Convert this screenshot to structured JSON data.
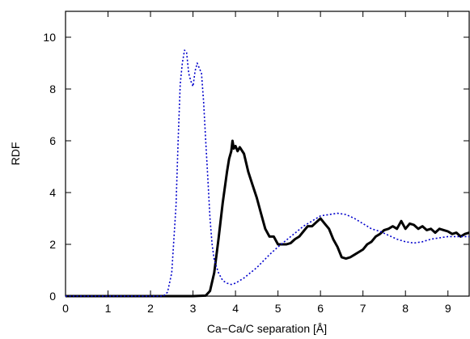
{
  "chart_data": {
    "type": "line",
    "xlabel": "Ca−Ca/C separation [Å]",
    "ylabel": "RDF",
    "xlim": [
      0,
      9.5
    ],
    "ylim": [
      0,
      11
    ],
    "xticks": [
      "0",
      "1",
      "2",
      "3",
      "4",
      "5",
      "6",
      "7",
      "8",
      "9"
    ],
    "yticks": [
      "0",
      "2",
      "4",
      "6",
      "8",
      "10"
    ],
    "grid": false,
    "legend": "none",
    "series": [
      {
        "style": "solid",
        "color": "#000000",
        "x": [
          0,
          2.0,
          3.0,
          3.3,
          3.4,
          3.5,
          3.6,
          3.7,
          3.8,
          3.85,
          3.9,
          3.93,
          3.96,
          4.0,
          4.05,
          4.1,
          4.2,
          4.3,
          4.4,
          4.5,
          4.6,
          4.7,
          4.8,
          4.9,
          5.0,
          5.1,
          5.2,
          5.3,
          5.4,
          5.5,
          5.6,
          5.7,
          5.8,
          5.9,
          6.0,
          6.1,
          6.2,
          6.3,
          6.4,
          6.5,
          6.6,
          6.7,
          6.8,
          6.9,
          7.0,
          7.1,
          7.2,
          7.3,
          7.4,
          7.5,
          7.6,
          7.7,
          7.8,
          7.9,
          8.0,
          8.1,
          8.2,
          8.3,
          8.4,
          8.5,
          8.6,
          8.7,
          8.8,
          8.9,
          9.0,
          9.1,
          9.2,
          9.3,
          9.4,
          9.5
        ],
        "y": [
          0,
          0,
          0,
          0.02,
          0.2,
          0.9,
          2.2,
          3.6,
          4.8,
          5.3,
          5.6,
          6.0,
          5.7,
          5.8,
          5.6,
          5.75,
          5.5,
          4.8,
          4.3,
          3.8,
          3.2,
          2.6,
          2.3,
          2.3,
          2.0,
          2.0,
          2.0,
          2.05,
          2.2,
          2.3,
          2.5,
          2.7,
          2.7,
          2.85,
          3.0,
          2.8,
          2.6,
          2.2,
          1.9,
          1.5,
          1.45,
          1.5,
          1.6,
          1.7,
          1.8,
          2.0,
          2.1,
          2.3,
          2.4,
          2.55,
          2.6,
          2.7,
          2.6,
          2.9,
          2.6,
          2.8,
          2.75,
          2.6,
          2.7,
          2.55,
          2.6,
          2.45,
          2.6,
          2.55,
          2.5,
          2.4,
          2.45,
          2.3,
          2.4,
          2.45
        ]
      },
      {
        "style": "dotted",
        "color": "#0000cc",
        "x": [
          0,
          2.3,
          2.4,
          2.5,
          2.6,
          2.65,
          2.7,
          2.75,
          2.8,
          2.85,
          2.9,
          2.95,
          3.0,
          3.05,
          3.1,
          3.15,
          3.2,
          3.25,
          3.3,
          3.35,
          3.4,
          3.45,
          3.5,
          3.6,
          3.7,
          3.8,
          3.9,
          4.0,
          4.2,
          4.5,
          4.8,
          5.0,
          5.3,
          5.6,
          5.8,
          6.0,
          6.2,
          6.4,
          6.6,
          6.8,
          7.0,
          7.2,
          7.4,
          7.6,
          7.8,
          8.0,
          8.2,
          8.4,
          8.6,
          8.8,
          9.0,
          9.2,
          9.4,
          9.5
        ],
        "y": [
          0,
          0,
          0.15,
          0.9,
          3.5,
          6.0,
          8.2,
          9.0,
          9.5,
          9.4,
          8.6,
          8.3,
          8.1,
          8.7,
          9.0,
          8.8,
          8.6,
          7.5,
          6.0,
          4.5,
          3.0,
          2.0,
          1.4,
          0.9,
          0.6,
          0.5,
          0.45,
          0.5,
          0.7,
          1.1,
          1.6,
          1.9,
          2.3,
          2.7,
          2.9,
          3.1,
          3.15,
          3.2,
          3.15,
          3.0,
          2.8,
          2.6,
          2.5,
          2.35,
          2.2,
          2.1,
          2.05,
          2.1,
          2.2,
          2.25,
          2.3,
          2.3,
          2.3,
          2.3
        ]
      }
    ]
  }
}
